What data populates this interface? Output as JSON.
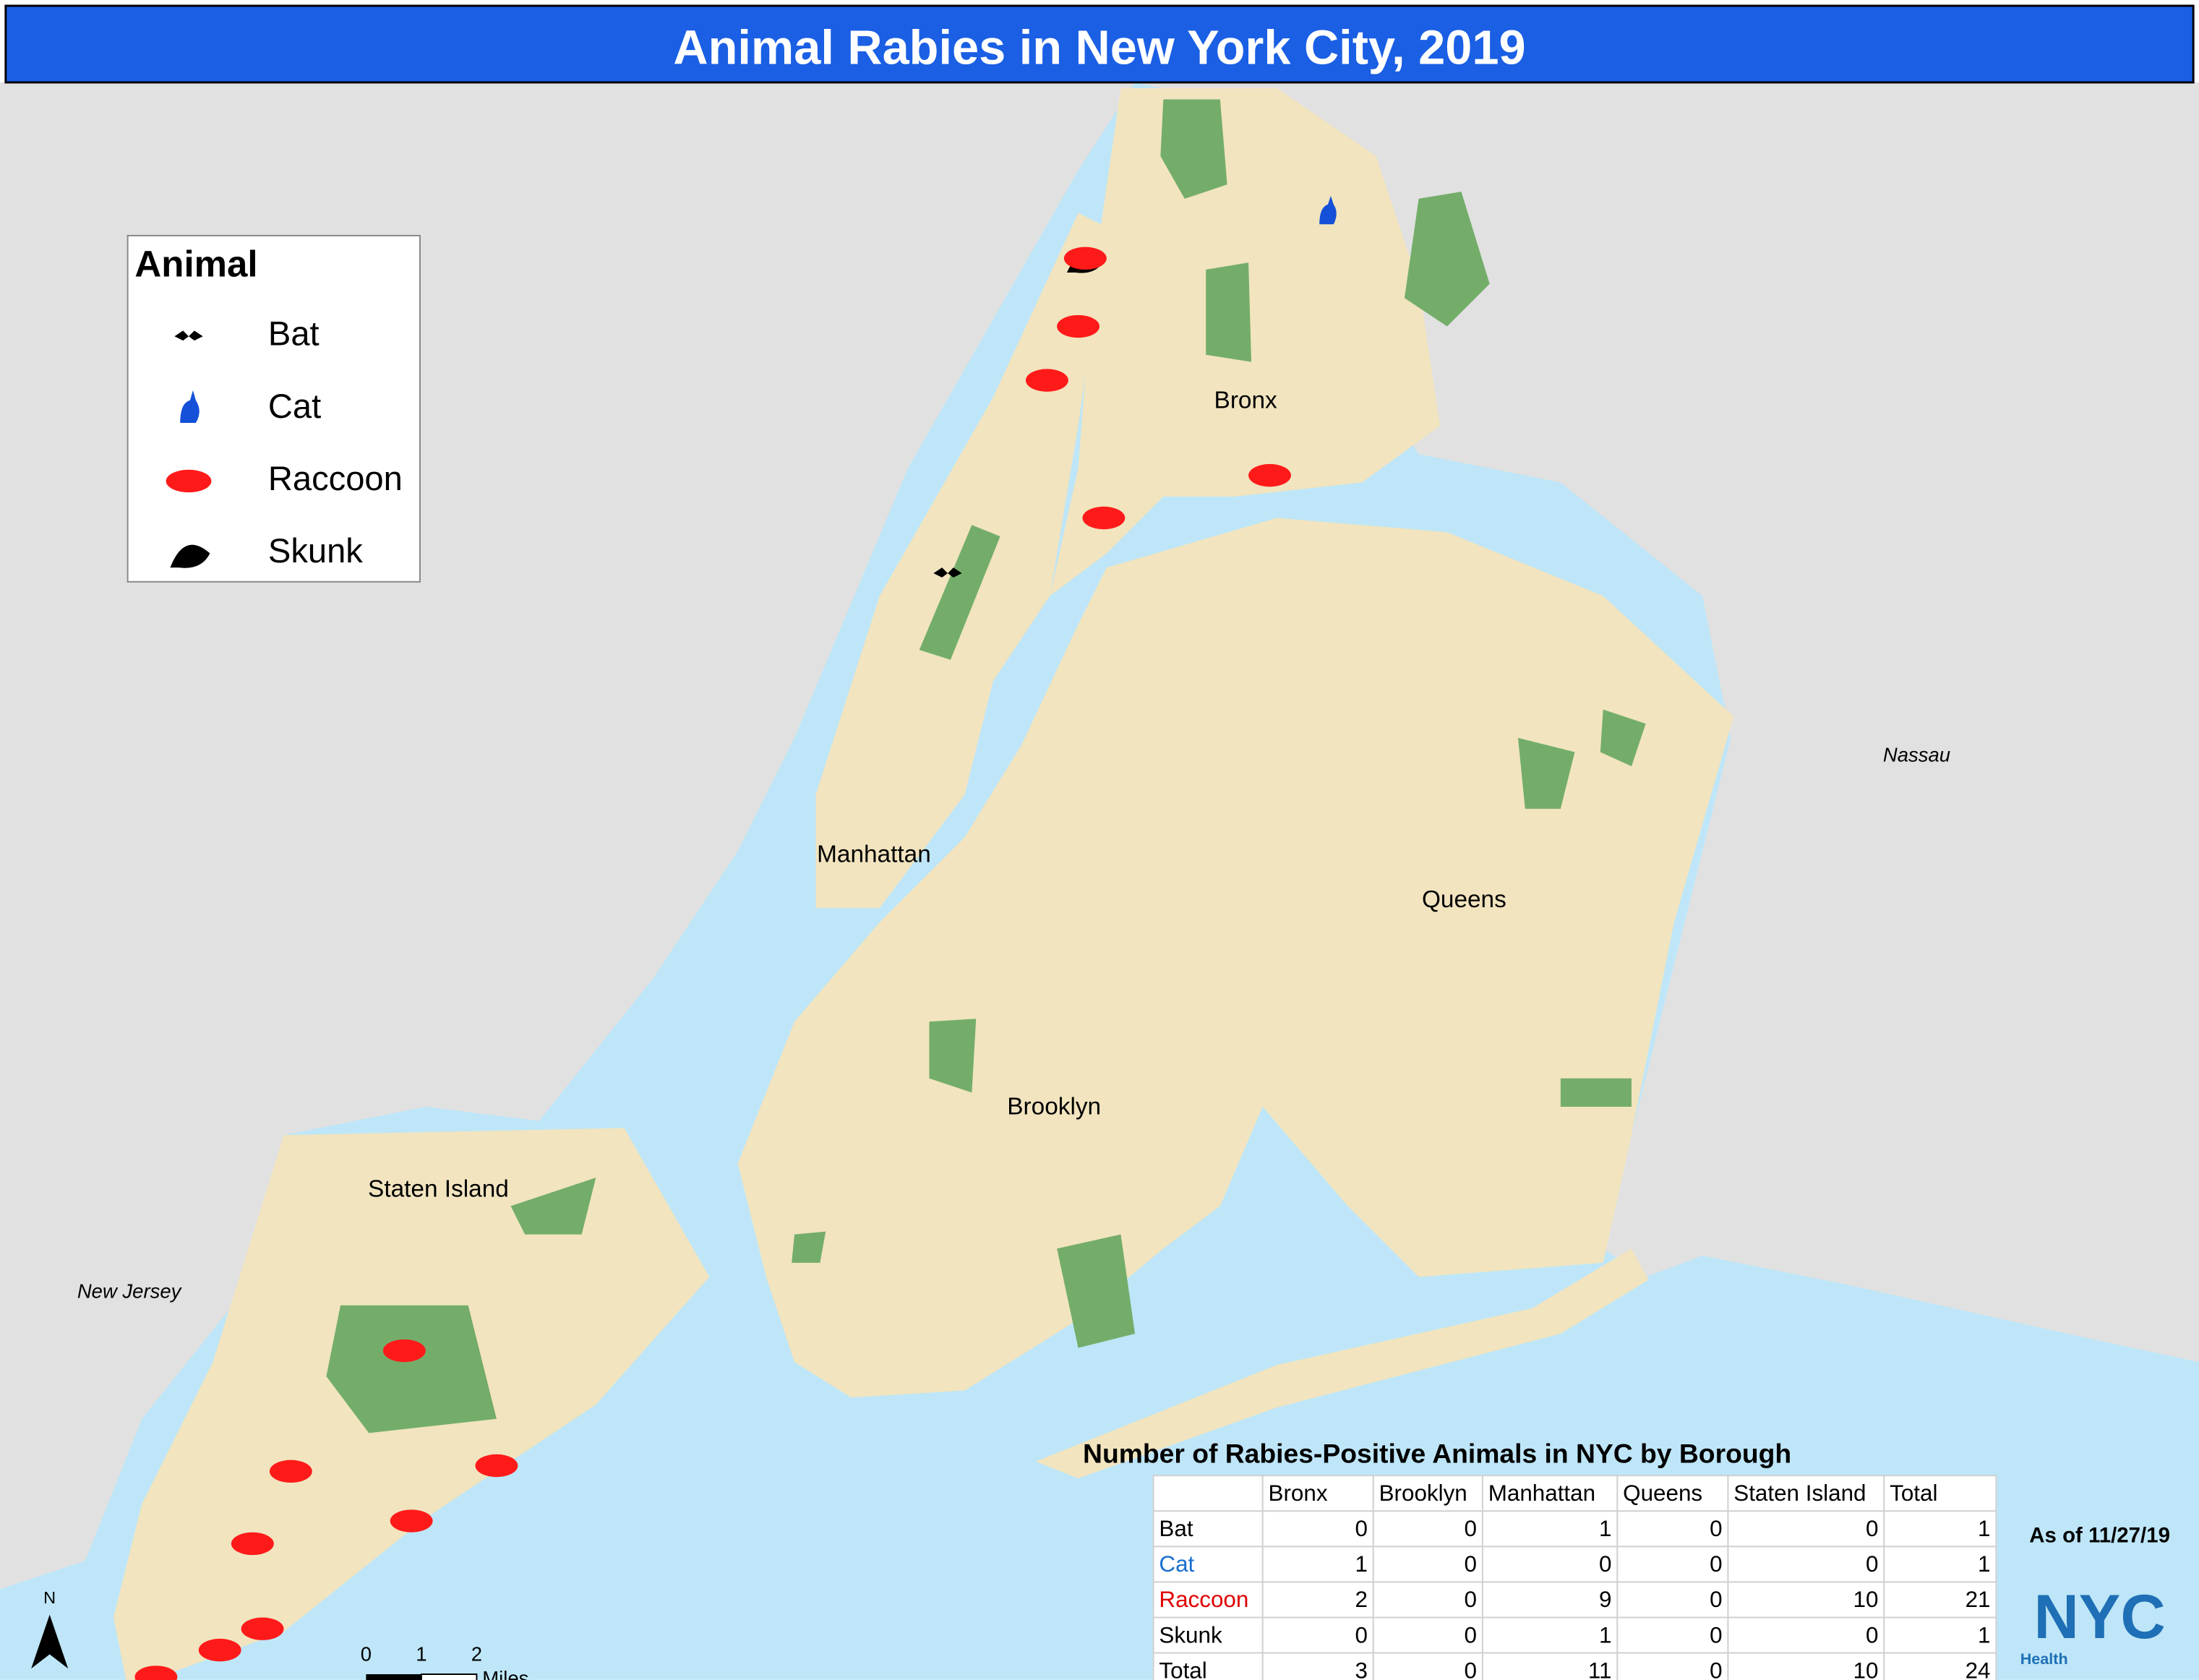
{
  "header": {
    "title": "Animal Rabies in New York City, 2019"
  },
  "legend": {
    "title": "Animal",
    "items": [
      "Bat",
      "Cat",
      "Raccoon",
      "Skunk"
    ]
  },
  "map_labels": {
    "bronx": "Bronx",
    "manhattan": "Manhattan",
    "queens": "Queens",
    "brooklyn": "Brooklyn",
    "staten_island": "Staten Island",
    "new_jersey": "New Jersey",
    "nassau": "Nassau"
  },
  "table": {
    "title": "Number of Rabies-Positive Animals in NYC by Borough",
    "columns": [
      "Bronx",
      "Brooklyn",
      "Manhattan",
      "Queens",
      "Staten Island",
      "Total"
    ],
    "rows": [
      [
        "Bat",
        0,
        0,
        1,
        0,
        0,
        1
      ],
      [
        "Cat",
        1,
        0,
        0,
        0,
        0,
        1
      ],
      [
        "Raccoon",
        2,
        0,
        9,
        0,
        10,
        21
      ],
      [
        "Skunk",
        0,
        0,
        1,
        0,
        0,
        1
      ],
      [
        "Total",
        3,
        0,
        11,
        0,
        10,
        24
      ]
    ]
  },
  "as_of": "As of 11/27/19",
  "scale": {
    "ticks": [
      "0",
      "1",
      "2"
    ],
    "unit": "Miles"
  },
  "north": "N",
  "logo": {
    "text": "NYC",
    "sub": "Health"
  }
}
